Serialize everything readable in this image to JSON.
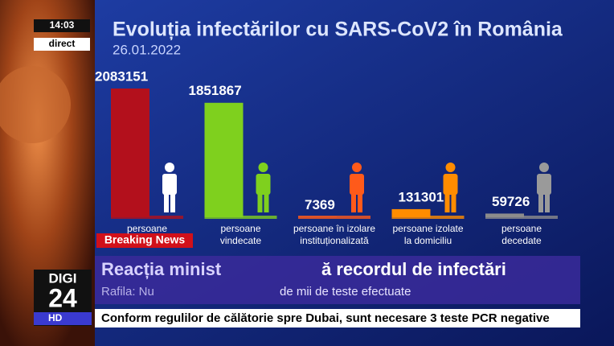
{
  "broadcast": {
    "clock": "14:03",
    "live": "direct",
    "logo_top": "DIGI",
    "logo_num": "24",
    "logo_hd": "HD",
    "breaking": "Breaking News",
    "headline_a": "Reacția minist",
    "headline_b": "ă recordul de infectări",
    "subline_a": "Rafila: Nu",
    "subline_b": "de mii de teste efectuate",
    "ticker": "Conform regulilor de călătorie spre Dubai, sunt necesare 3 teste PCR negative"
  },
  "chart_data": {
    "type": "bar",
    "title": "Evoluția infectărilor cu SARS-CoV2 în România",
    "subtitle": "26.01.2022",
    "categories": [
      "persoane",
      "persoane\nvindecate",
      "persoane în izolare\ninstituționalizată",
      "persoane izolate\nla domiciliu",
      "persoane\ndecedate"
    ],
    "values": [
      2083151,
      1851867,
      7369,
      131301,
      59726
    ],
    "colors": [
      "#b3101c",
      "#7fd01e",
      "#ff5a1a",
      "#ff8c00",
      "#8c8c8c"
    ],
    "icon_colors": [
      "#ffffff",
      "#7fd01e",
      "#ff5a1a",
      "#ff8c00",
      "#9a9a9a"
    ]
  }
}
